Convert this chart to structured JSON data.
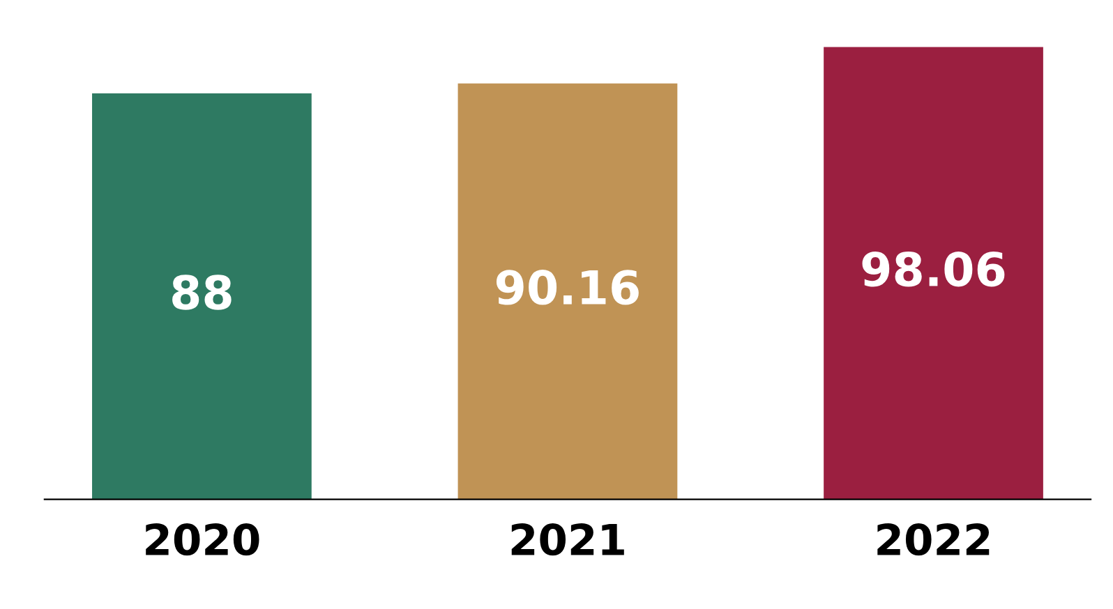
{
  "chart_data": {
    "type": "bar",
    "categories": [
      "2020",
      "2021",
      "2022"
    ],
    "values": [
      88,
      90.16,
      98.06
    ],
    "colors": [
      "#2e7a62",
      "#c09355",
      "#9b1f40"
    ],
    "data_labels": true
  }
}
